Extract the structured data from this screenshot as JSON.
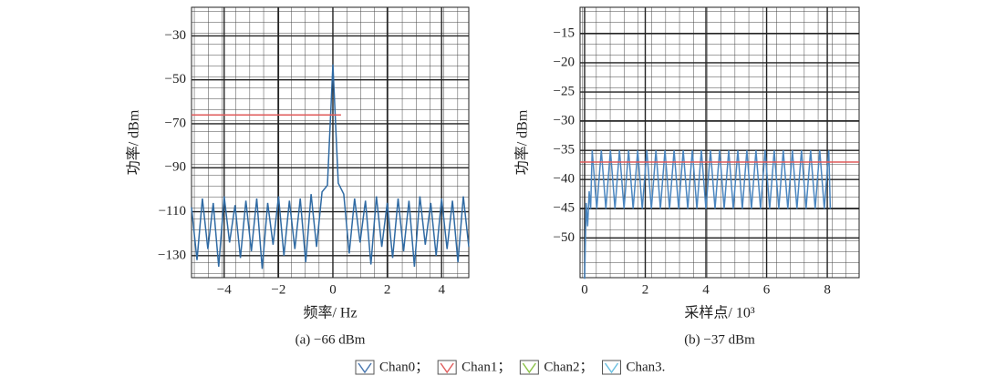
{
  "chart_data": [
    {
      "type": "line",
      "xlabel": "频率/ Hz",
      "ylabel": "功率/ dBm",
      "caption": "(a) −66 dBm",
      "xlim": [
        -5.2,
        5.0
      ],
      "ylim": [
        -140,
        -17
      ],
      "xticks": [
        {
          "value": -4,
          "label": "−4"
        },
        {
          "value": -2,
          "label": "−2"
        },
        0,
        2,
        4
      ],
      "yticks": [
        {
          "value": -30,
          "label": "−30"
        },
        {
          "value": -50,
          "label": "−50"
        },
        {
          "value": -70,
          "label": "−70"
        },
        {
          "value": -90,
          "label": "−90"
        },
        {
          "value": -110,
          "label": "−110"
        },
        {
          "value": -130,
          "label": "−130"
        }
      ],
      "grid": true,
      "series": [
        {
          "color": "#2f6aa3",
          "x": [
            -5.2,
            -5.0,
            -4.8,
            -4.6,
            -4.4,
            -4.2,
            -4.0,
            -3.8,
            -3.6,
            -3.4,
            -3.2,
            -3.0,
            -2.8,
            -2.6,
            -2.4,
            -2.2,
            -2.0,
            -1.8,
            -1.6,
            -1.4,
            -1.2,
            -1.0,
            -0.8,
            -0.6,
            -0.4,
            -0.2,
            0.0,
            0.2,
            0.4,
            0.6,
            0.8,
            1.0,
            1.2,
            1.4,
            1.6,
            1.8,
            2.0,
            2.2,
            2.4,
            2.6,
            2.8,
            3.0,
            3.2,
            3.4,
            3.6,
            3.8,
            4.0,
            4.2,
            4.4,
            4.6,
            4.8,
            5.0
          ],
          "values": [
            -108,
            -132,
            -104,
            -127,
            -106,
            -135,
            -103,
            -124,
            -107,
            -131,
            -105,
            -128,
            -104,
            -136,
            -106,
            -125,
            -103,
            -130,
            -105,
            -127,
            -104,
            -133,
            -102,
            -126,
            -101,
            -98,
            -43,
            -97,
            -102,
            -129,
            -104,
            -124,
            -105,
            -134,
            -103,
            -126,
            -106,
            -131,
            -104,
            -128,
            -105,
            -135,
            -103,
            -125,
            -106,
            -130,
            -104,
            -127,
            -105,
            -133,
            -103,
            -126
          ]
        },
        {
          "color": "#e05a5a",
          "x": [
            -5.2,
            0.3
          ],
          "values": [
            -66,
            -66
          ]
        }
      ]
    },
    {
      "type": "line",
      "xlabel": "采样点/ 10³",
      "ylabel": "功率/ dBm",
      "caption": "(b) −37 dBm",
      "xlim": [
        -0.15,
        9.05
      ],
      "ylim": [
        -56.8,
        -10.5
      ],
      "xticks": [
        0,
        2,
        4,
        6,
        8
      ],
      "yticks": [
        {
          "value": -15,
          "label": "−15"
        },
        {
          "value": -20,
          "label": "−20"
        },
        {
          "value": -25,
          "label": "−25"
        },
        {
          "value": -30,
          "label": "−30"
        },
        {
          "value": -35,
          "label": "−35"
        },
        {
          "value": -40,
          "label": "−40"
        },
        {
          "value": -45,
          "label": "−45"
        },
        {
          "value": -50,
          "label": "−50"
        }
      ],
      "grid": true,
      "series": [
        {
          "color": "#4a86c0",
          "x": [
            0,
            0.05,
            0.1,
            0.15,
            0.2,
            0.25,
            0.4,
            0.55,
            0.7,
            0.85,
            1.0,
            1.15,
            1.3,
            1.45,
            1.6,
            1.75,
            1.9,
            2.05,
            2.2,
            2.35,
            2.5,
            2.65,
            2.8,
            2.95,
            3.1,
            3.25,
            3.4,
            3.55,
            3.7,
            3.85,
            4.0,
            4.15,
            4.3,
            4.45,
            4.6,
            4.75,
            4.9,
            5.05,
            5.2,
            5.35,
            5.5,
            5.65,
            5.8,
            5.95,
            6.1,
            6.25,
            6.4,
            6.55,
            6.7,
            6.85,
            7.0,
            7.15,
            7.3,
            7.45,
            7.6,
            7.75,
            7.9,
            8.05,
            8.1
          ],
          "values": [
            -57,
            -44,
            -48,
            -42,
            -45,
            -35,
            -45,
            -35,
            -45,
            -35,
            -45,
            -35,
            -45,
            -35,
            -45,
            -35,
            -45,
            -35,
            -45,
            -35,
            -45,
            -35,
            -45,
            -35,
            -45,
            -35,
            -45,
            -35,
            -45,
            -35,
            -45,
            -35,
            -45,
            -35,
            -45,
            -35,
            -45,
            -35,
            -45,
            -35,
            -45,
            -35,
            -45,
            -35,
            -45,
            -35,
            -45,
            -35,
            -45,
            -35,
            -45,
            -35,
            -45,
            -35,
            -45,
            -35,
            -45,
            -35,
            -45
          ]
        },
        {
          "color": "#e05a5a",
          "x": [
            -0.15,
            9.05
          ],
          "values": [
            -37,
            -37
          ]
        }
      ]
    }
  ],
  "legend": [
    {
      "label": "Chan0；",
      "color": "#4a78b0"
    },
    {
      "label": "Chan1；",
      "color": "#e06060"
    },
    {
      "label": "Chan2；",
      "color": "#8cc34a"
    },
    {
      "label": "Chan3.",
      "color": "#6cc0e0"
    }
  ]
}
